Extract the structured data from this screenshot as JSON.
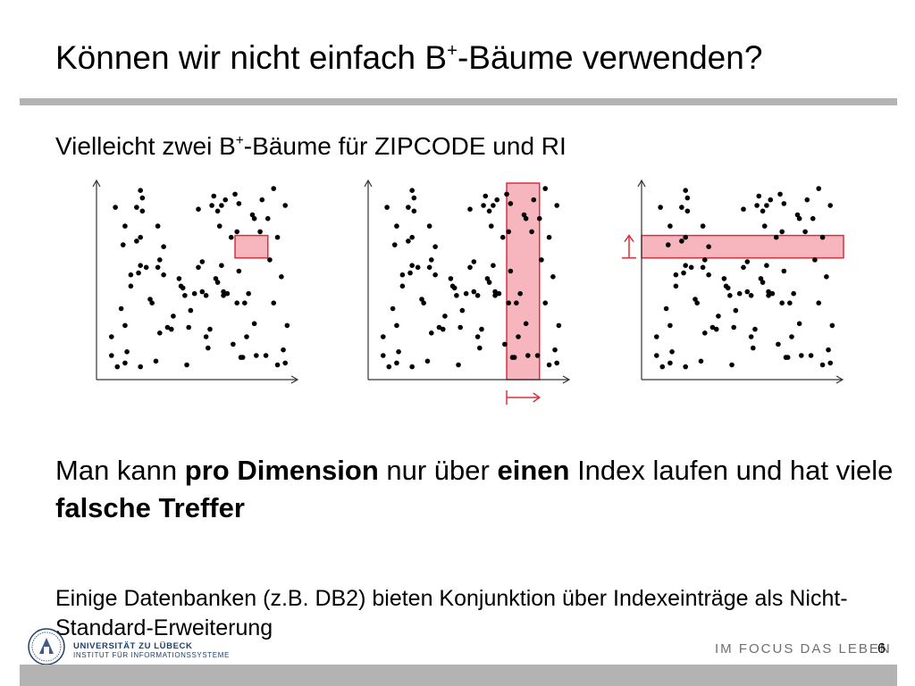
{
  "title": {
    "part1": "Können wir nicht einfach B",
    "sup": "+",
    "part2": "-Bäume verwenden?"
  },
  "subtitle": {
    "part1": "Vielleicht zwei B",
    "sup": "+",
    "part2": "-Bäume für ZIPCODE und RI"
  },
  "message": {
    "t1": "Man kann ",
    "b1": "pro Dimension",
    "t2": " nur über ",
    "b2": "einen",
    "t3": " Index laufen und hat viele ",
    "b3": "falsche Treffer"
  },
  "note": "Einige Datenbanken (z.B. DB2) bieten Konjunktion über Indexeinträge als Nicht-Standard-Erweiterung",
  "footer": {
    "university": "UNIVERSITÄT ZU LÜBECK",
    "institute": "INSTITUT FÜR INFORMATIONSSYSTEME",
    "slogan": "IM FOCUS DAS LEBEN",
    "page_number": "6"
  },
  "colors": {
    "highlight_fill": "#f7b6bd",
    "highlight_stroke": "#d9303b",
    "bar_gray": "#b3b3b3",
    "dot": "#000000"
  },
  "chart_data": {
    "type": "scatter",
    "points": [
      [
        0.05,
        0.2
      ],
      [
        0.05,
        0.1
      ],
      [
        0.07,
        0.89
      ],
      [
        0.08,
        0.04
      ],
      [
        0.1,
        0.35
      ],
      [
        0.11,
        0.69
      ],
      [
        0.12,
        0.26
      ],
      [
        0.12,
        0.06
      ],
      [
        0.12,
        0.79
      ],
      [
        0.13,
        0.12
      ],
      [
        0.15,
        0.53
      ],
      [
        0.15,
        0.47
      ],
      [
        0.18,
        0.71
      ],
      [
        0.18,
        0.89
      ],
      [
        0.19,
        0.54
      ],
      [
        0.2,
        0.04
      ],
      [
        0.2,
        0.58
      ],
      [
        0.2,
        0.98
      ],
      [
        0.2,
        0.73
      ],
      [
        0.21,
        0.94
      ],
      [
        0.21,
        0.87
      ],
      [
        0.23,
        0.57
      ],
      [
        0.25,
        0.4
      ],
      [
        0.26,
        0.38
      ],
      [
        0.28,
        0.07
      ],
      [
        0.29,
        0.57
      ],
      [
        0.29,
        0.79
      ],
      [
        0.3,
        0.61
      ],
      [
        0.3,
        0.22
      ],
      [
        0.32,
        0.53
      ],
      [
        0.32,
        0.68
      ],
      [
        0.34,
        0.25
      ],
      [
        0.36,
        0.24
      ],
      [
        0.37,
        0.31
      ],
      [
        0.4,
        0.51
      ],
      [
        0.41,
        0.47
      ],
      [
        0.42,
        0.46
      ],
      [
        0.43,
        0.42
      ],
      [
        0.44,
        0.05
      ],
      [
        0.45,
        0.25
      ],
      [
        0.46,
        0.34
      ],
      [
        0.48,
        0.43
      ],
      [
        0.5,
        0.57
      ],
      [
        0.5,
        0.88
      ],
      [
        0.52,
        0.44
      ],
      [
        0.52,
        0.6
      ],
      [
        0.54,
        0.42
      ],
      [
        0.54,
        0.2
      ],
      [
        0.55,
        0.14
      ],
      [
        0.56,
        0.24
      ],
      [
        0.57,
        0.9
      ],
      [
        0.58,
        0.95
      ],
      [
        0.59,
        0.51
      ],
      [
        0.6,
        0.87
      ],
      [
        0.6,
        0.49
      ],
      [
        0.61,
        0.79
      ],
      [
        0.62,
        0.58
      ],
      [
        0.62,
        0.9
      ],
      [
        0.63,
        0.44
      ],
      [
        0.63,
        0.42
      ],
      [
        0.64,
        0.93
      ],
      [
        0.65,
        0.43
      ],
      [
        0.67,
        0.73
      ],
      [
        0.68,
        0.16
      ],
      [
        0.69,
        0.96
      ],
      [
        0.7,
        0.76
      ],
      [
        0.7,
        0.38
      ],
      [
        0.71,
        0.91
      ],
      [
        0.71,
        0.55
      ],
      [
        0.72,
        0.09
      ],
      [
        0.73,
        0.09
      ],
      [
        0.74,
        0.38
      ],
      [
        0.75,
        0.2
      ],
      [
        0.76,
        0.43
      ],
      [
        0.78,
        0.85
      ],
      [
        0.79,
        0.83
      ],
      [
        0.79,
        0.27
      ],
      [
        0.8,
        0.1
      ],
      [
        0.82,
        0.76
      ],
      [
        0.83,
        0.93
      ],
      [
        0.85,
        0.1
      ],
      [
        0.86,
        0.83
      ],
      [
        0.87,
        0.61
      ],
      [
        0.89,
        0.99
      ],
      [
        0.89,
        0.38
      ],
      [
        0.91,
        0.05
      ],
      [
        0.91,
        0.73
      ],
      [
        0.93,
        0.52
      ],
      [
        0.94,
        0.13
      ],
      [
        0.95,
        0.9
      ],
      [
        0.95,
        0.06
      ],
      [
        0.96,
        0.26
      ]
    ],
    "panels": [
      {
        "highlight": "box",
        "x_range": [
          0.69,
          0.86
        ],
        "y_range": [
          0.62,
          0.74
        ]
      },
      {
        "highlight": "vertical-band",
        "x_range": [
          0.69,
          0.86
        ]
      },
      {
        "highlight": "horizontal-band",
        "y_range": [
          0.62,
          0.74
        ]
      }
    ]
  }
}
